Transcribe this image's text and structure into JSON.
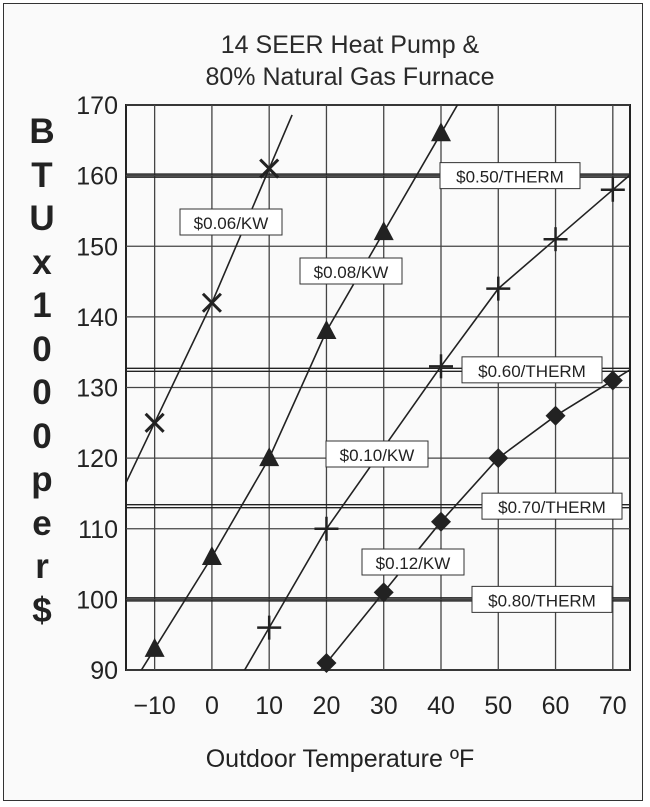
{
  "chart_data": {
    "type": "line",
    "title": [
      "14 SEER Heat Pump &",
      "80% Natural Gas Furnace"
    ],
    "ylabel": "BTU x 1000 per $",
    "xlabel": "Outdoor  Temperature  ºF",
    "xlim": [
      -15,
      73
    ],
    "ylim": [
      90,
      170
    ],
    "x_ticks": [
      "−10",
      "0",
      "10",
      "20",
      "30",
      "40",
      "50",
      "60",
      "70"
    ],
    "y_ticks": [
      "90",
      "100",
      "110",
      "120",
      "130",
      "140",
      "150",
      "160",
      "170"
    ],
    "grid": true,
    "series": [
      {
        "name": "$0.06/KW",
        "marker": "x",
        "x": [
          -10,
          0,
          10
        ],
        "y": [
          125,
          142,
          161
        ]
      },
      {
        "name": "$0.08/KW",
        "marker": "triangle",
        "x": [
          -10,
          0,
          10,
          20,
          30,
          40
        ],
        "y": [
          93,
          106,
          120,
          138,
          152,
          166
        ]
      },
      {
        "name": "$0.10/KW",
        "marker": "plus",
        "x": [
          10,
          20,
          40,
          50,
          60,
          70
        ],
        "y": [
          96,
          110,
          133,
          144,
          151,
          158
        ]
      },
      {
        "name": "$0.12/KW",
        "marker": "diamond",
        "x": [
          20,
          30,
          40,
          50,
          60,
          70
        ],
        "y": [
          91,
          101,
          111,
          120,
          126,
          131
        ]
      }
    ],
    "therm_lines": [
      {
        "name": "$0.50/THERM",
        "value": 160
      },
      {
        "name": "$0.60/THERM",
        "value": 132.5
      },
      {
        "name": "$0.70/THERM",
        "value": 113.2
      },
      {
        "name": "$0.80/THERM",
        "value": 100
      }
    ]
  }
}
